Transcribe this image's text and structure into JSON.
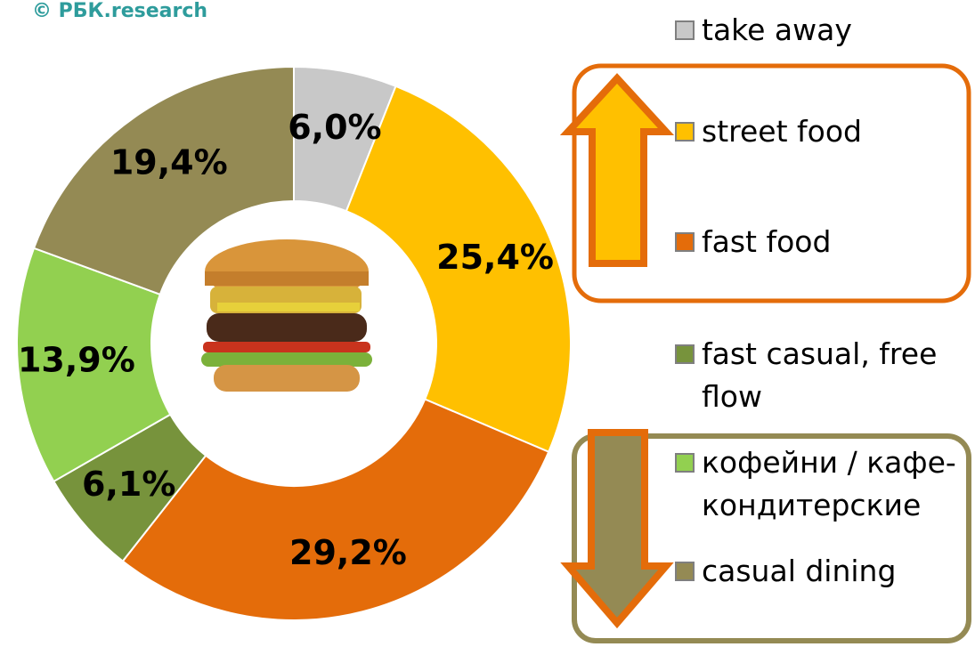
{
  "chart_data": {
    "type": "donut",
    "source": "© РБК.research",
    "categories": [
      "take away",
      "street food",
      "fast food",
      "fast casual, free flow",
      "кофейни / кафе-кондитерские",
      "casual dining"
    ],
    "values": [
      6.0,
      25.4,
      29.2,
      6.1,
      13.9,
      19.4
    ],
    "value_labels": [
      "6,0%",
      "25,4%",
      "29,2%",
      "6,1%",
      "13,9%",
      "19,4%"
    ],
    "colors": [
      "#c8c8c8",
      "#ffc000",
      "#e46c0a",
      "#77933c",
      "#92d050",
      "#948a54"
    ],
    "legend": "right"
  }
}
